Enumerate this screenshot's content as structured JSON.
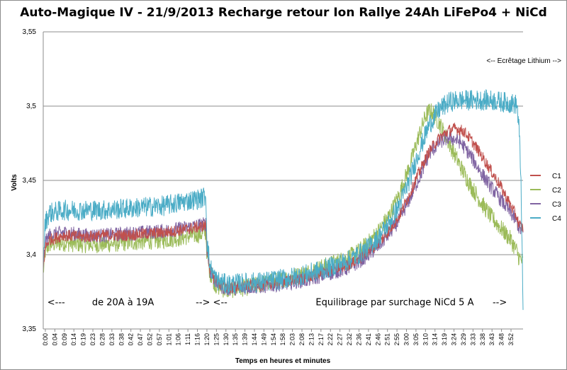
{
  "chart_data": {
    "type": "line",
    "title": "Auto-Magique IV - 21/9/2013  Recharge retour Ion Rallye 24Ah LiFePo4 + NiCd",
    "xlabel": "Temps en heures et minutes",
    "ylabel": "Volts",
    "ylim": [
      3.35,
      3.55
    ],
    "yticks": [
      "3,35",
      "3,4",
      "3,45",
      "3,5",
      "3,55"
    ],
    "ytick_values": [
      3.35,
      3.4,
      3.45,
      3.5,
      3.55
    ],
    "xlim_minutes": [
      0,
      236
    ],
    "xtick_labels": [
      "0:00",
      "0:04",
      "0:09",
      "0:14",
      "0:19",
      "0:23",
      "0:28",
      "0:33",
      "0:38",
      "0:42",
      "0:47",
      "0:52",
      "0:57",
      "1:01",
      "1:06",
      "1:11",
      "1:16",
      "1:20",
      "1:25",
      "1:30",
      "1:35",
      "1:39",
      "1:44",
      "1:49",
      "1:54",
      "1:58",
      "2:03",
      "2:08",
      "2:13",
      "2:17",
      "2:22",
      "2:27",
      "2:32",
      "2:36",
      "2:41",
      "2:46",
      "2:51",
      "2:55",
      "3:00",
      "3:05",
      "3:10",
      "3:14",
      "3:19",
      "3:24",
      "3:29",
      "3:33",
      "3:38",
      "3:43",
      "3:48",
      "3:52"
    ],
    "grid": "horizontal",
    "legend_position": "right",
    "series": [
      {
        "name": "C1",
        "color": "#c0504d",
        "x": [
          0,
          1,
          3,
          10,
          20,
          30,
          40,
          50,
          60,
          70,
          78,
          80,
          80.5,
          82,
          85,
          90,
          100,
          110,
          120,
          130,
          140,
          150,
          155,
          160,
          165,
          170,
          175,
          180,
          185,
          190,
          195,
          200,
          203,
          205,
          207,
          210,
          215,
          220,
          225,
          230,
          233,
          234,
          236
        ],
        "y": [
          3.39,
          3.405,
          3.41,
          3.413,
          3.412,
          3.413,
          3.413,
          3.414,
          3.415,
          3.417,
          3.419,
          3.42,
          3.405,
          3.39,
          3.382,
          3.378,
          3.379,
          3.38,
          3.382,
          3.385,
          3.389,
          3.393,
          3.397,
          3.402,
          3.408,
          3.416,
          3.426,
          3.44,
          3.456,
          3.47,
          3.479,
          3.484,
          3.485,
          3.484,
          3.483,
          3.478,
          3.468,
          3.457,
          3.446,
          3.433,
          3.425,
          3.42,
          3.418
        ]
      },
      {
        "name": "C2",
        "color": "#9bbb59",
        "x": [
          0,
          1,
          3,
          10,
          20,
          30,
          40,
          50,
          60,
          70,
          78,
          80,
          80.5,
          82,
          85,
          90,
          100,
          110,
          120,
          130,
          140,
          150,
          155,
          160,
          165,
          170,
          175,
          180,
          185,
          188,
          190,
          192,
          195,
          200,
          205,
          210,
          215,
          220,
          225,
          230,
          233,
          234,
          236
        ],
        "y": [
          3.388,
          3.402,
          3.407,
          3.408,
          3.407,
          3.407,
          3.408,
          3.409,
          3.41,
          3.412,
          3.414,
          3.415,
          3.4,
          3.388,
          3.379,
          3.376,
          3.378,
          3.381,
          3.384,
          3.388,
          3.393,
          3.398,
          3.402,
          3.408,
          3.416,
          3.426,
          3.44,
          3.459,
          3.481,
          3.493,
          3.497,
          3.495,
          3.488,
          3.474,
          3.46,
          3.447,
          3.436,
          3.426,
          3.418,
          3.41,
          3.402,
          3.398,
          3.395
        ]
      },
      {
        "name": "C3",
        "color": "#8064a2",
        "x": [
          0,
          1,
          3,
          10,
          20,
          30,
          40,
          50,
          60,
          70,
          78,
          80,
          80.5,
          82,
          85,
          90,
          100,
          110,
          120,
          130,
          140,
          150,
          155,
          160,
          165,
          170,
          175,
          180,
          185,
          190,
          195,
          200,
          205,
          210,
          215,
          220,
          225,
          230,
          233,
          234,
          236
        ],
        "y": [
          3.392,
          3.408,
          3.413,
          3.415,
          3.413,
          3.413,
          3.414,
          3.415,
          3.416,
          3.418,
          3.42,
          3.421,
          3.405,
          3.389,
          3.381,
          3.377,
          3.378,
          3.379,
          3.381,
          3.383,
          3.387,
          3.391,
          3.395,
          3.4,
          3.406,
          3.414,
          3.423,
          3.437,
          3.452,
          3.468,
          3.476,
          3.479,
          3.476,
          3.467,
          3.456,
          3.446,
          3.437,
          3.428,
          3.422,
          3.418,
          3.415
        ]
      },
      {
        "name": "C4",
        "color": "#4bacc6",
        "x": [
          0,
          1,
          3,
          10,
          20,
          30,
          40,
          50,
          60,
          70,
          78,
          80,
          80.5,
          82,
          85,
          90,
          100,
          110,
          120,
          130,
          140,
          150,
          155,
          160,
          165,
          170,
          175,
          180,
          185,
          190,
          195,
          200,
          205,
          210,
          215,
          220,
          225,
          230,
          233,
          234,
          235,
          236
        ],
        "y": [
          3.395,
          3.422,
          3.428,
          3.43,
          3.43,
          3.43,
          3.431,
          3.432,
          3.433,
          3.436,
          3.438,
          3.44,
          3.41,
          3.392,
          3.383,
          3.38,
          3.381,
          3.382,
          3.384,
          3.387,
          3.391,
          3.396,
          3.4,
          3.405,
          3.412,
          3.421,
          3.433,
          3.45,
          3.47,
          3.488,
          3.498,
          3.503,
          3.504,
          3.504,
          3.504,
          3.504,
          3.503,
          3.502,
          3.501,
          3.485,
          3.45,
          3.36
        ]
      }
    ],
    "annotations": [
      {
        "text": "<---",
        "x": 2,
        "y": 3.366
      },
      {
        "text": "de 20A à 19A",
        "x": 24,
        "y": 3.366
      },
      {
        "text": "--> <--",
        "x": 75,
        "y": 3.366
      },
      {
        "text": "Equilibrage par surchage NiCd  5 A",
        "x": 134,
        "y": 3.366
      },
      {
        "text": "-->",
        "x": 221,
        "y": 3.366
      },
      {
        "text": "<-- Ecrêtage Lithium -->",
        "x": 218,
        "y": 3.529
      }
    ]
  }
}
